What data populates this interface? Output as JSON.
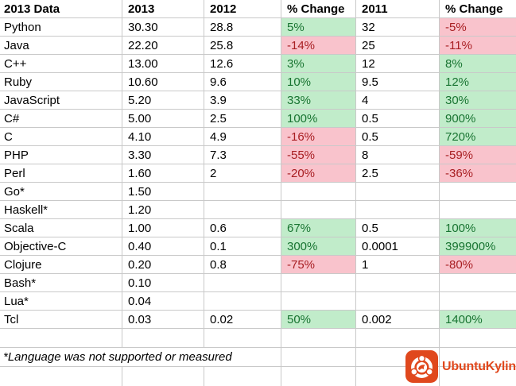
{
  "table": {
    "headers": [
      "2013 Data",
      "2013",
      "2012",
      "% Change",
      "2011",
      "% Change"
    ],
    "rows": [
      {
        "language": "Python",
        "y2013": "30.30",
        "y2012": "28.8",
        "change_vs_2012": "5%",
        "trend_vs_2012": "positive",
        "y2011": "32",
        "change_vs_2011": "-5%",
        "trend_vs_2011": "negative"
      },
      {
        "language": "Java",
        "y2013": "22.20",
        "y2012": "25.8",
        "change_vs_2012": "-14%",
        "trend_vs_2012": "negative",
        "y2011": "25",
        "change_vs_2011": "-11%",
        "trend_vs_2011": "negative"
      },
      {
        "language": "C++",
        "y2013": "13.00",
        "y2012": "12.6",
        "change_vs_2012": "3%",
        "trend_vs_2012": "positive",
        "y2011": "12",
        "change_vs_2011": "8%",
        "trend_vs_2011": "positive"
      },
      {
        "language": "Ruby",
        "y2013": "10.60",
        "y2012": "9.6",
        "change_vs_2012": "10%",
        "trend_vs_2012": "positive",
        "y2011": "9.5",
        "change_vs_2011": "12%",
        "trend_vs_2011": "positive"
      },
      {
        "language": "JavaScript",
        "y2013": "5.20",
        "y2012": "3.9",
        "change_vs_2012": "33%",
        "trend_vs_2012": "positive",
        "y2011": "4",
        "change_vs_2011": "30%",
        "trend_vs_2011": "positive"
      },
      {
        "language": "C#",
        "y2013": "5.00",
        "y2012": "2.5",
        "change_vs_2012": "100%",
        "trend_vs_2012": "positive",
        "y2011": "0.5",
        "change_vs_2011": "900%",
        "trend_vs_2011": "positive"
      },
      {
        "language": "C",
        "y2013": "4.10",
        "y2012": "4.9",
        "change_vs_2012": "-16%",
        "trend_vs_2012": "negative",
        "y2011": "0.5",
        "change_vs_2011": "720%",
        "trend_vs_2011": "positive"
      },
      {
        "language": "PHP",
        "y2013": "3.30",
        "y2012": "7.3",
        "change_vs_2012": "-55%",
        "trend_vs_2012": "negative",
        "y2011": "8",
        "change_vs_2011": "-59%",
        "trend_vs_2011": "negative"
      },
      {
        "language": "Perl",
        "y2013": "1.60",
        "y2012": "2",
        "change_vs_2012": "-20%",
        "trend_vs_2012": "negative",
        "y2011": "2.5",
        "change_vs_2011": "-36%",
        "trend_vs_2011": "negative"
      },
      {
        "language": "Go*",
        "y2013": "1.50",
        "y2012": "",
        "change_vs_2012": "",
        "trend_vs_2012": "none",
        "y2011": "",
        "change_vs_2011": "",
        "trend_vs_2011": "none"
      },
      {
        "language": "Haskell*",
        "y2013": "1.20",
        "y2012": "",
        "change_vs_2012": "",
        "trend_vs_2012": "none",
        "y2011": "",
        "change_vs_2011": "",
        "trend_vs_2011": "none"
      },
      {
        "language": "Scala",
        "y2013": "1.00",
        "y2012": "0.6",
        "change_vs_2012": "67%",
        "trend_vs_2012": "positive",
        "y2011": "0.5",
        "change_vs_2011": "100%",
        "trend_vs_2011": "positive"
      },
      {
        "language": "Objective-C",
        "y2013": "0.40",
        "y2012": "0.1",
        "change_vs_2012": "300%",
        "trend_vs_2012": "positive",
        "y2011": "0.0001",
        "change_vs_2011": "399900%",
        "trend_vs_2011": "positive"
      },
      {
        "language": "Clojure",
        "y2013": "0.20",
        "y2012": "0.8",
        "change_vs_2012": "-75%",
        "trend_vs_2012": "negative",
        "y2011": "1",
        "change_vs_2011": "-80%",
        "trend_vs_2011": "negative"
      },
      {
        "language": "Bash*",
        "y2013": "0.10",
        "y2012": "",
        "change_vs_2012": "",
        "trend_vs_2012": "none",
        "y2011": "",
        "change_vs_2011": "",
        "trend_vs_2011": "none"
      },
      {
        "language": "Lua*",
        "y2013": "0.04",
        "y2012": "",
        "change_vs_2012": "",
        "trend_vs_2012": "none",
        "y2011": "",
        "change_vs_2011": "",
        "trend_vs_2011": "none"
      },
      {
        "language": "Tcl",
        "y2013": "0.03",
        "y2012": "0.02",
        "change_vs_2012": "50%",
        "trend_vs_2012": "positive",
        "y2011": "0.002",
        "change_vs_2011": "1400%",
        "trend_vs_2011": "positive"
      }
    ],
    "footnote": "*Language was not supported or measured"
  },
  "logo": {
    "brand": "UbuntuKylin",
    "icon": "ubuntukylin-circle-of-friends-icon",
    "color": "#e0481d"
  },
  "colors": {
    "positive_bg": "#c1ecca",
    "positive_text": "#187431",
    "negative_bg": "#f9c3cc",
    "negative_text": "#a81e22",
    "gridline": "#c9c9c9",
    "text": "#000000",
    "logo_orange": "#e0481d"
  }
}
